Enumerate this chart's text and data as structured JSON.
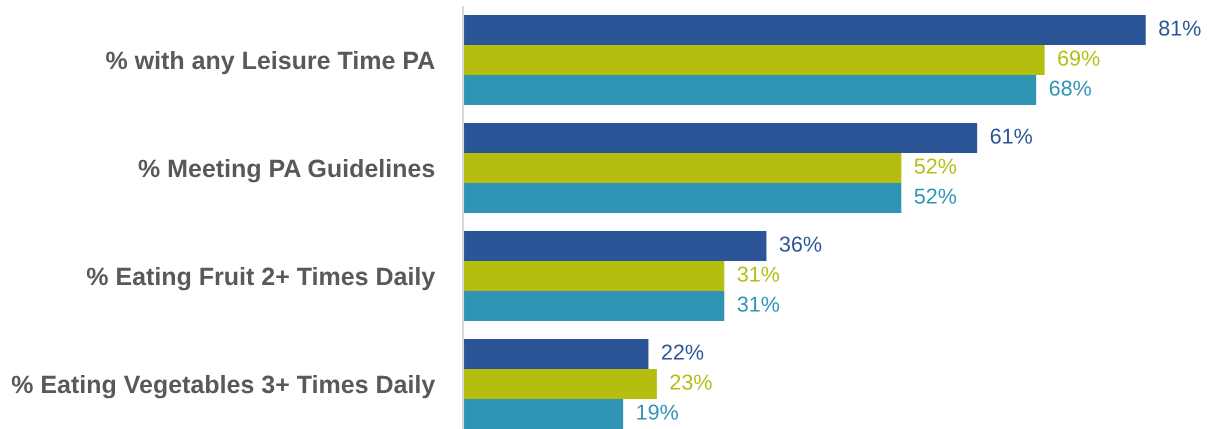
{
  "chart_data": {
    "type": "bar",
    "orientation": "horizontal",
    "categories": [
      "% with any Leisure Time PA",
      "% Meeting PA Guidelines",
      "% Eating Fruit 2+ Times Daily",
      "% Eating Vegetables 3+ Times Daily"
    ],
    "series": [
      {
        "color": "#2b5597",
        "values": [
          81,
          61,
          36,
          22
        ],
        "value_labels": [
          "81%",
          "61%",
          "36%",
          "22%"
        ]
      },
      {
        "color": "#b5be0f",
        "values": [
          69,
          52,
          31,
          23
        ],
        "value_labels": [
          "69%",
          "52%",
          "31%",
          "23%"
        ]
      },
      {
        "color": "#3094b4",
        "values": [
          68,
          52,
          31,
          19
        ],
        "value_labels": [
          "68%",
          "52%",
          "31%",
          "19%"
        ]
      }
    ],
    "tick_labels": "y"
  }
}
